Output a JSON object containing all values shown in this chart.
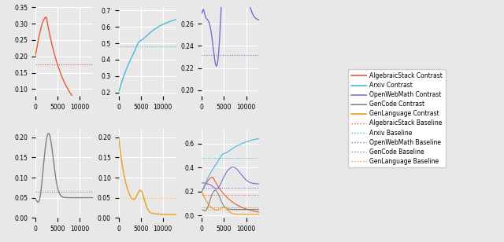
{
  "x_max": 13000,
  "n_points": 300,
  "colors": {
    "algebraic": "#e05a3a",
    "arxiv": "#4ab8d8",
    "openwebmath": "#7b6fcc",
    "gencode": "#808080",
    "genlanguage": "#e8a020"
  },
  "baselines": {
    "algebraic": 0.175,
    "arxiv": 0.483,
    "openwebmath": 0.232,
    "gencode": 0.065,
    "genlanguage": 0.049
  },
  "ylims": {
    "algebraic": [
      0.08,
      0.35
    ],
    "arxiv": [
      0.18,
      0.72
    ],
    "openwebmath": [
      0.195,
      0.275
    ],
    "gencode": [
      0.0,
      0.22
    ],
    "genlanguage": [
      0.0,
      0.22
    ],
    "combined": [
      -0.02,
      0.72
    ]
  },
  "background": "#e8e8e8",
  "legend_labels": {
    "contrast": [
      "AlgebraicStack Contrast",
      "Arxiv Contrast",
      "OpenWebMath Contrast",
      "GenCode Contrast",
      "GenLanguage Contrast"
    ],
    "baseline": [
      "AlgebraicStack Baseline",
      "Arxiv Baseline",
      "OpenWebMath Baseline",
      "GenCode Baseline",
      "GenLanguage Baseline"
    ]
  }
}
